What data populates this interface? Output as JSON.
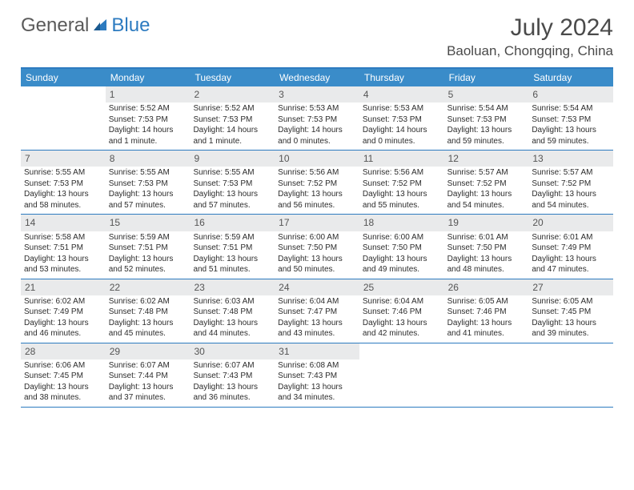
{
  "logo": {
    "text1": "General",
    "text2": "Blue"
  },
  "title": "July 2024",
  "location": "Baoluan, Chongqing, China",
  "colors": {
    "header_bg": "#3a8cc9",
    "accent": "#2d7bc0",
    "daynum_bg": "#e9eaeb",
    "text": "#333333"
  },
  "day_names": [
    "Sunday",
    "Monday",
    "Tuesday",
    "Wednesday",
    "Thursday",
    "Friday",
    "Saturday"
  ],
  "weeks": [
    [
      {
        "n": "",
        "sr": "",
        "ss": "",
        "dl": ""
      },
      {
        "n": "1",
        "sr": "5:52 AM",
        "ss": "7:53 PM",
        "dl": "14 hours and 1 minute."
      },
      {
        "n": "2",
        "sr": "5:52 AM",
        "ss": "7:53 PM",
        "dl": "14 hours and 1 minute."
      },
      {
        "n": "3",
        "sr": "5:53 AM",
        "ss": "7:53 PM",
        "dl": "14 hours and 0 minutes."
      },
      {
        "n": "4",
        "sr": "5:53 AM",
        "ss": "7:53 PM",
        "dl": "14 hours and 0 minutes."
      },
      {
        "n": "5",
        "sr": "5:54 AM",
        "ss": "7:53 PM",
        "dl": "13 hours and 59 minutes."
      },
      {
        "n": "6",
        "sr": "5:54 AM",
        "ss": "7:53 PM",
        "dl": "13 hours and 59 minutes."
      }
    ],
    [
      {
        "n": "7",
        "sr": "5:55 AM",
        "ss": "7:53 PM",
        "dl": "13 hours and 58 minutes."
      },
      {
        "n": "8",
        "sr": "5:55 AM",
        "ss": "7:53 PM",
        "dl": "13 hours and 57 minutes."
      },
      {
        "n": "9",
        "sr": "5:55 AM",
        "ss": "7:53 PM",
        "dl": "13 hours and 57 minutes."
      },
      {
        "n": "10",
        "sr": "5:56 AM",
        "ss": "7:52 PM",
        "dl": "13 hours and 56 minutes."
      },
      {
        "n": "11",
        "sr": "5:56 AM",
        "ss": "7:52 PM",
        "dl": "13 hours and 55 minutes."
      },
      {
        "n": "12",
        "sr": "5:57 AM",
        "ss": "7:52 PM",
        "dl": "13 hours and 54 minutes."
      },
      {
        "n": "13",
        "sr": "5:57 AM",
        "ss": "7:52 PM",
        "dl": "13 hours and 54 minutes."
      }
    ],
    [
      {
        "n": "14",
        "sr": "5:58 AM",
        "ss": "7:51 PM",
        "dl": "13 hours and 53 minutes."
      },
      {
        "n": "15",
        "sr": "5:59 AM",
        "ss": "7:51 PM",
        "dl": "13 hours and 52 minutes."
      },
      {
        "n": "16",
        "sr": "5:59 AM",
        "ss": "7:51 PM",
        "dl": "13 hours and 51 minutes."
      },
      {
        "n": "17",
        "sr": "6:00 AM",
        "ss": "7:50 PM",
        "dl": "13 hours and 50 minutes."
      },
      {
        "n": "18",
        "sr": "6:00 AM",
        "ss": "7:50 PM",
        "dl": "13 hours and 49 minutes."
      },
      {
        "n": "19",
        "sr": "6:01 AM",
        "ss": "7:50 PM",
        "dl": "13 hours and 48 minutes."
      },
      {
        "n": "20",
        "sr": "6:01 AM",
        "ss": "7:49 PM",
        "dl": "13 hours and 47 minutes."
      }
    ],
    [
      {
        "n": "21",
        "sr": "6:02 AM",
        "ss": "7:49 PM",
        "dl": "13 hours and 46 minutes."
      },
      {
        "n": "22",
        "sr": "6:02 AM",
        "ss": "7:48 PM",
        "dl": "13 hours and 45 minutes."
      },
      {
        "n": "23",
        "sr": "6:03 AM",
        "ss": "7:48 PM",
        "dl": "13 hours and 44 minutes."
      },
      {
        "n": "24",
        "sr": "6:04 AM",
        "ss": "7:47 PM",
        "dl": "13 hours and 43 minutes."
      },
      {
        "n": "25",
        "sr": "6:04 AM",
        "ss": "7:46 PM",
        "dl": "13 hours and 42 minutes."
      },
      {
        "n": "26",
        "sr": "6:05 AM",
        "ss": "7:46 PM",
        "dl": "13 hours and 41 minutes."
      },
      {
        "n": "27",
        "sr": "6:05 AM",
        "ss": "7:45 PM",
        "dl": "13 hours and 39 minutes."
      }
    ],
    [
      {
        "n": "28",
        "sr": "6:06 AM",
        "ss": "7:45 PM",
        "dl": "13 hours and 38 minutes."
      },
      {
        "n": "29",
        "sr": "6:07 AM",
        "ss": "7:44 PM",
        "dl": "13 hours and 37 minutes."
      },
      {
        "n": "30",
        "sr": "6:07 AM",
        "ss": "7:43 PM",
        "dl": "13 hours and 36 minutes."
      },
      {
        "n": "31",
        "sr": "6:08 AM",
        "ss": "7:43 PM",
        "dl": "13 hours and 34 minutes."
      },
      {
        "n": "",
        "sr": "",
        "ss": "",
        "dl": ""
      },
      {
        "n": "",
        "sr": "",
        "ss": "",
        "dl": ""
      },
      {
        "n": "",
        "sr": "",
        "ss": "",
        "dl": ""
      }
    ]
  ],
  "labels": {
    "sunrise": "Sunrise:",
    "sunset": "Sunset:",
    "daylight": "Daylight:"
  }
}
